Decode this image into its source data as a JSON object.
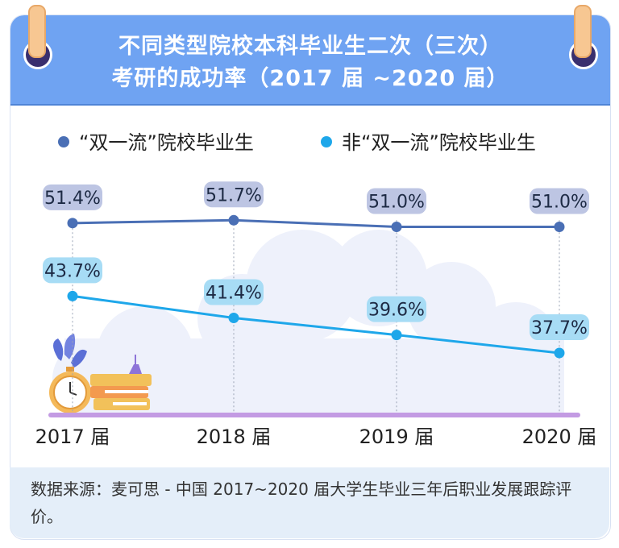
{
  "header": {
    "title_line1": "不同类型院校本科毕业生二次（三次）",
    "title_line2": "考研的成功率（2017 届 ~2020 届）"
  },
  "legend": {
    "items": [
      {
        "label": "“双一流”院校毕业生",
        "color": "#4a6fb5"
      },
      {
        "label": "非“双一流”院校毕业生",
        "color": "#1ea7ea"
      }
    ]
  },
  "footer": {
    "source": "数据来源：麦可思 - 中国 2017~2020 届大学生毕业三年后职业发展跟踪评价。"
  },
  "chart_data": {
    "type": "line",
    "categories": [
      "2017 届",
      "2018 届",
      "2019 届",
      "2020 届"
    ],
    "series": [
      {
        "name": "“双一流”院校毕业生",
        "values": [
          51.4,
          51.7,
          51.0,
          51.0
        ],
        "labels": [
          "51.4%",
          "51.7%",
          "51.0%",
          "51.0%"
        ],
        "color": "#4a6fb5",
        "label_bg": "#bdc5e3"
      },
      {
        "name": "非“双一流”院校毕业生",
        "values": [
          43.7,
          41.4,
          39.6,
          37.7
        ],
        "labels": [
          "43.7%",
          "41.4%",
          "39.6%",
          "37.7%"
        ],
        "color": "#1ea7ea",
        "label_bg": "#a7dcf5"
      }
    ],
    "unit": "%",
    "ylim": [
      30,
      55
    ],
    "grid": false,
    "legend": "top"
  }
}
